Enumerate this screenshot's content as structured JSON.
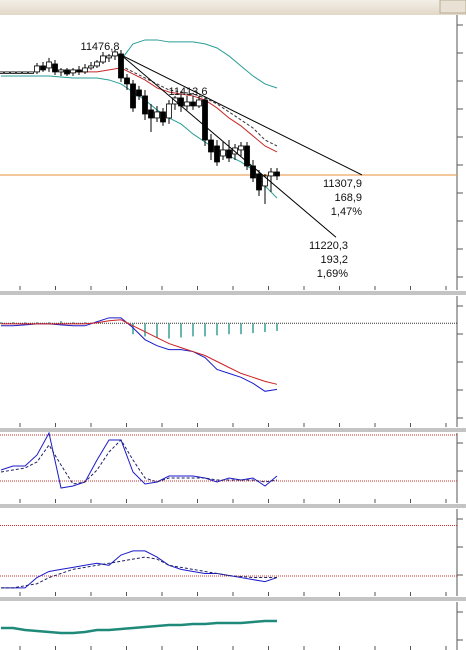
{
  "chart_data": [
    {
      "type": "candlestick",
      "ylim": [
        11146,
        11533
      ],
      "open": [
        11452.9,
        11452.9,
        11452.9,
        11452.9,
        11452.9,
        11452.9,
        11452.9,
        11461.3,
        11458.5,
        11464.1,
        11452.9,
        11455.7,
        11451.5,
        11455.7,
        11452.9,
        11458.5,
        11461.3,
        11466.9,
        11472.6,
        11475.4,
        11478.2,
        11444.4,
        11436.0,
        11427.5,
        11419.1,
        11399.4,
        11388.1,
        11396.6,
        11388.1,
        11407.8,
        11416.3,
        11405.0,
        11410.6,
        11405.0,
        11413.4,
        11357.1,
        11348.7,
        11334.6,
        11343.1,
        11337.4,
        11343.1,
        11348.7,
        11320.6,
        11309.3,
        11292.4,
        11306.5,
        11312.1
      ],
      "high": [
        11452.9,
        11452.9,
        11452.9,
        11452.9,
        11452.9,
        11452.9,
        11465.5,
        11466.9,
        11472.6,
        11469.7,
        11458.5,
        11458.5,
        11458.5,
        11461.3,
        11464.1,
        11466.9,
        11469.7,
        11481.0,
        11478.2,
        11483.8,
        11483.8,
        11450.0,
        11441.6,
        11433.2,
        11427.5,
        11407.8,
        11405.0,
        11402.2,
        11413.4,
        11419.1,
        11421.9,
        11419.1,
        11419.1,
        11419.1,
        11416.3,
        11365.6,
        11357.1,
        11354.3,
        11357.1,
        11351.5,
        11354.3,
        11354.3,
        11329.0,
        11314.9,
        11309.3,
        11317.7,
        11317.7
      ],
      "low": [
        11452.9,
        11452.9,
        11452.9,
        11452.9,
        11452.9,
        11452.9,
        11450.0,
        11452.9,
        11452.9,
        11448.6,
        11447.2,
        11447.2,
        11447.2,
        11448.6,
        11450.0,
        11455.7,
        11458.5,
        11464.1,
        11466.9,
        11469.7,
        11438.8,
        11427.5,
        11396.6,
        11413.4,
        11385.3,
        11368.4,
        11382.5,
        11376.9,
        11379.7,
        11399.4,
        11396.6,
        11399.4,
        11399.4,
        11402.2,
        11348.7,
        11329.0,
        11320.6,
        11329.0,
        11326.2,
        11329.0,
        11334.6,
        11314.9,
        11298.0,
        11278.3,
        11267.1,
        11284.0,
        11300.8
      ],
      "close": [
        11452.9,
        11452.9,
        11452.9,
        11452.9,
        11452.9,
        11452.9,
        11461.3,
        11455.7,
        11466.9,
        11452.9,
        11455.7,
        11450.0,
        11455.7,
        11452.9,
        11458.5,
        11461.3,
        11466.9,
        11475.4,
        11475.4,
        11481.0,
        11444.4,
        11436.0,
        11402.2,
        11419.1,
        11393.7,
        11388.1,
        11396.6,
        11382.5,
        11407.8,
        11416.3,
        11405.0,
        11410.6,
        11405.0,
        11413.4,
        11357.1,
        11340.3,
        11326.2,
        11343.1,
        11331.8,
        11345.9,
        11348.7,
        11320.6,
        11303.7,
        11286.8,
        11306.5,
        11312.1,
        11306.5
      ],
      "overlays": [
        {
          "color": "#2a9d96",
          "values": [
            null,
            null,
            null,
            null,
            null,
            null,
            null,
            null,
            null,
            null,
            11469.7,
            11492.3,
            11497.9,
            11497.9,
            11495.1,
            11495.1,
            11495.1,
            11492.3,
            11486.6,
            11475.4,
            11461.3,
            11447.2,
            11436.0,
            11430.3
          ]
        },
        {
          "color": "#2a9d96",
          "values": [
            11447.2,
            11447.2,
            11447.2,
            11447.2,
            11447.2,
            11445.8,
            11444.4,
            11444.4,
            11444.4,
            11441.6,
            11436.0,
            11424.7,
            11413.4,
            11399.4,
            11388.1,
            11379.7,
            11365.6,
            11354.3,
            11343.1,
            11334.6,
            11326.2,
            11314.9,
            11292.4,
            11275.5
          ]
        },
        {
          "color": "#c62828",
          "values": [
            null,
            null,
            null,
            null,
            null,
            11452.9,
            11452.9,
            11452.9,
            11452.9,
            11455.7,
            11458.5,
            11450.0,
            11441.6,
            11430.3,
            11424.7,
            11421.9,
            11419.1,
            11413.4,
            11402.2,
            11388.1,
            11376.9,
            11362.8,
            11348.7,
            11340.3
          ]
        },
        {
          "color": "#333333",
          "dashed": true,
          "values": [
            null,
            null,
            null,
            null,
            null,
            null,
            null,
            null,
            null,
            null,
            11461.3,
            11452.9,
            11444.4,
            11436.0,
            11427.5,
            11424.7,
            11421.9,
            11416.3,
            11407.8,
            11396.6,
            11385.3,
            11374.0,
            11357.1,
            11348.7
          ]
        }
      ],
      "annotations": [
        {
          "value": 11476.8,
          "label": "11476,8"
        },
        {
          "value": 11413.6,
          "label": "11413,6"
        }
      ],
      "projections": [
        {
          "value": 11307.9,
          "label": "11307,9",
          "change": 168.9,
          "change_label": "168,9",
          "percent": 1.47,
          "percent_label": "1,47%"
        },
        {
          "value": 11220.3,
          "label": "11220,3",
          "change": 193.2,
          "change_label": "193,2",
          "percent": 1.69,
          "percent_label": "1,69%"
        }
      ],
      "last_price_color": "#e8923a"
    },
    {
      "type": "line",
      "ylim": [
        -95,
        25
      ],
      "zero_line": true,
      "series": [
        {
          "type": "bar",
          "color": "#3a9e94",
          "values": [
            1,
            1,
            1,
            1,
            1,
            2,
            1,
            1,
            0,
            0,
            0,
            -10,
            -12,
            -13,
            -14,
            -13,
            -12,
            -12,
            -11,
            -10,
            -10,
            -9,
            -8,
            -7
          ]
        },
        {
          "color": "#1a1acc",
          "values": [
            -2.3,
            -2.3,
            -1.4,
            -0.5,
            -0.5,
            -1.4,
            -2.3,
            -2.3,
            1.4,
            5.0,
            5.0,
            -4.1,
            -15.0,
            -20.5,
            -24.1,
            -24.1,
            -25.9,
            -31.4,
            -42.3,
            -45.9,
            -49.5,
            -55.0,
            -62.3,
            -60.5
          ]
        },
        {
          "color": "#cc2222",
          "values": [
            -0.5,
            -0.5,
            -0.5,
            -0.5,
            -0.5,
            -0.5,
            -0.5,
            -0.5,
            0.5,
            2.3,
            3.2,
            -2.3,
            -7.7,
            -13.2,
            -18.6,
            -22.3,
            -25.9,
            -29.5,
            -35.0,
            -40.5,
            -45.9,
            -49.5,
            -53.2,
            -55.9
          ]
        }
      ]
    },
    {
      "type": "line",
      "ylim": [
        -5,
        100
      ],
      "levels": [
        97,
        28
      ],
      "level_color": "#cc3333",
      "series": [
        {
          "color": "#1a1acc",
          "values": [
            44.5,
            50.5,
            50.5,
            67.0,
            100,
            17.5,
            20.5,
            26.5,
            59.5,
            89.5,
            89.5,
            41.5,
            23.5,
            26.5,
            35.5,
            35.5,
            35.5,
            32.5,
            26.5,
            32.5,
            29.5,
            32.5,
            20.5,
            35.5
          ]
        },
        {
          "color": "#222266",
          "dashed": true,
          "values": [
            41.5,
            44.5,
            47.5,
            56.5,
            82.0,
            52.0,
            23.5,
            26.5,
            44.5,
            71.5,
            89.5,
            59.5,
            32.5,
            26.5,
            32.5,
            32.5,
            32.5,
            32.5,
            29.5,
            29.5,
            29.5,
            29.5,
            26.5,
            29.5
          ]
        }
      ]
    },
    {
      "type": "line",
      "ylim": [
        0,
        100
      ],
      "levels": [
        81,
        23
      ],
      "level_color": "#cc3333",
      "series": [
        {
          "color": "#1a1acc",
          "values": [
            9.4,
            9.4,
            9.4,
            21.2,
            28.2,
            30.6,
            32.9,
            35.3,
            37.6,
            35.3,
            47.1,
            51.8,
            51.8,
            44.7,
            35.3,
            30.6,
            28.2,
            25.9,
            25.9,
            23.5,
            21.2,
            18.8,
            16.5,
            21.2
          ]
        },
        {
          "color": "#222266",
          "dashed": true,
          "values": [
            9.4,
            9.4,
            11.8,
            14.1,
            21.2,
            25.9,
            30.6,
            32.9,
            35.3,
            37.6,
            40.0,
            42.4,
            44.7,
            42.4,
            35.3,
            32.9,
            30.6,
            28.2,
            25.9,
            23.5,
            22.4,
            21.2,
            21.2,
            21.2
          ]
        }
      ]
    },
    {
      "type": "line",
      "ylim": [
        0,
        100
      ],
      "series": [
        {
          "color": "#1f8a7a",
          "width": 2.5,
          "values": [
            45.8,
            45.8,
            41.7,
            39.6,
            37.5,
            35.4,
            35.4,
            37.5,
            41.7,
            41.7,
            43.8,
            45.8,
            47.9,
            50.0,
            52.1,
            52.1,
            54.2,
            54.2,
            56.3,
            56.3,
            56.3,
            58.3,
            60.4,
            60.4
          ]
        }
      ]
    }
  ]
}
